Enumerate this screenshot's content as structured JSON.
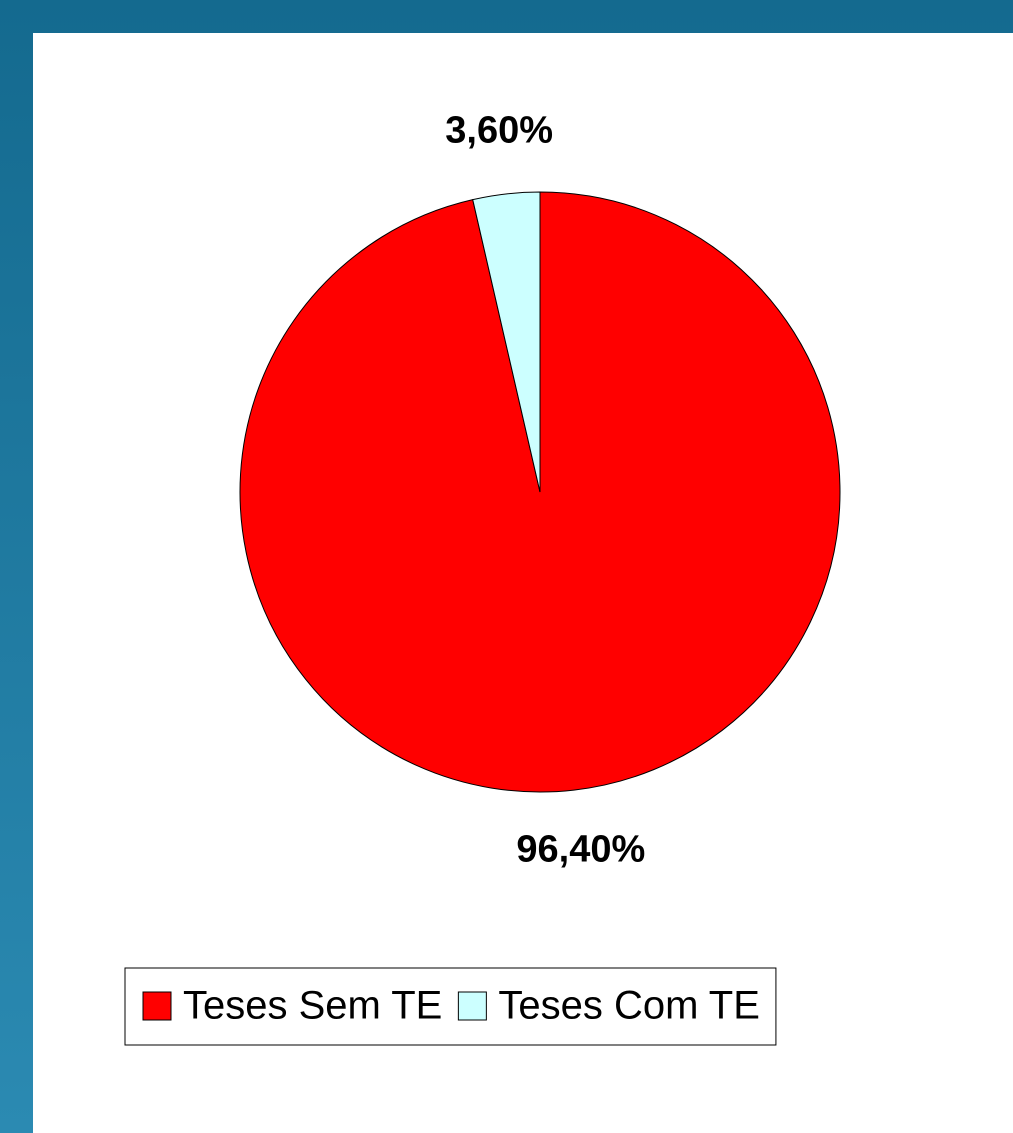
{
  "chart_data": {
    "type": "pie",
    "categories": [
      "Teses Sem TE",
      "Teses Com TE"
    ],
    "values": [
      96.4,
      3.6
    ],
    "value_labels": [
      "96,40%",
      "3,60%"
    ],
    "colors": [
      "#ff0000",
      "#ccffff"
    ],
    "legend": "bottom"
  }
}
